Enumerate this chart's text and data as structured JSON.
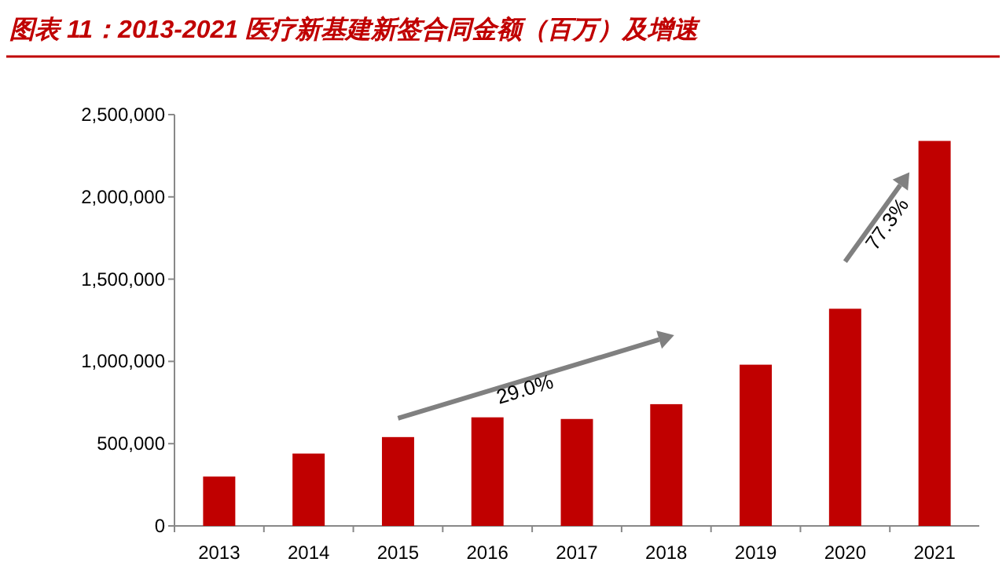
{
  "chart_data": {
    "type": "bar",
    "title": "图表 11：2013-2021 医疗新基建新签合同金额（百万）及增速",
    "categories": [
      "2013",
      "2014",
      "2015",
      "2016",
      "2017",
      "2018",
      "2019",
      "2020",
      "2021"
    ],
    "values": [
      300000,
      440000,
      540000,
      660000,
      650000,
      740000,
      980000,
      1320000,
      2340000
    ],
    "color": "#c00000",
    "ylim": [
      0,
      2500000
    ],
    "yticks": [
      0,
      {
        "value": 500000,
        "label": "500,000"
      },
      {
        "value": 1000000,
        "label": "1,000,000"
      },
      {
        "value": 1500000,
        "label": "1,500,000"
      },
      {
        "value": 2000000,
        "label": "2,000,000"
      },
      {
        "value": 2500000,
        "label": "2,500,000"
      }
    ],
    "grid": false,
    "annotations": [
      "29.0%",
      "77.3%"
    ]
  }
}
